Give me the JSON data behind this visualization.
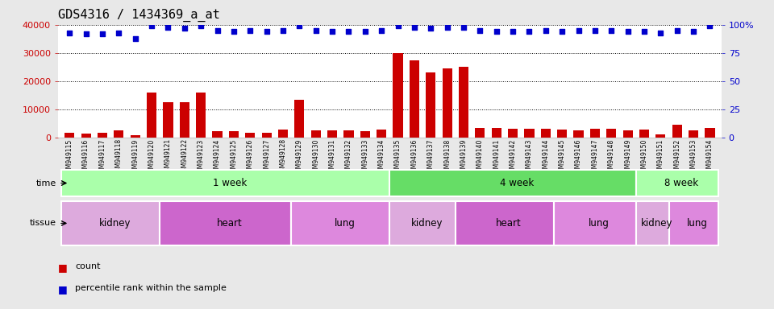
{
  "title": "GDS4316 / 1434369_a_at",
  "samples": [
    "GSM949115",
    "GSM949116",
    "GSM949117",
    "GSM949118",
    "GSM949119",
    "GSM949120",
    "GSM949121",
    "GSM949122",
    "GSM949123",
    "GSM949124",
    "GSM949125",
    "GSM949126",
    "GSM949127",
    "GSM949128",
    "GSM949129",
    "GSM949130",
    "GSM949131",
    "GSM949132",
    "GSM949133",
    "GSM949134",
    "GSM949135",
    "GSM949136",
    "GSM949137",
    "GSM949138",
    "GSM949139",
    "GSM949140",
    "GSM949141",
    "GSM949142",
    "GSM949143",
    "GSM949144",
    "GSM949145",
    "GSM949146",
    "GSM949147",
    "GSM949148",
    "GSM949149",
    "GSM949150",
    "GSM949151",
    "GSM949152",
    "GSM949153",
    "GSM949154"
  ],
  "counts": [
    1800,
    1500,
    1700,
    2500,
    900,
    16000,
    12500,
    12500,
    16000,
    2200,
    2200,
    1800,
    1700,
    2800,
    13500,
    2500,
    2500,
    2500,
    2200,
    2800,
    30000,
    27500,
    23000,
    24500,
    25000,
    3500,
    3500,
    3200,
    3000,
    3200,
    2700,
    2600,
    3000,
    3000,
    2500,
    2800,
    1200,
    4500,
    2500,
    3500
  ],
  "percentile": [
    93,
    92,
    92,
    93,
    88,
    99,
    98,
    97,
    99,
    95,
    94,
    95,
    94,
    95,
    99,
    95,
    94,
    94,
    94,
    95,
    99,
    98,
    97,
    98,
    98,
    95,
    94,
    94,
    94,
    95,
    94,
    95,
    95,
    95,
    94,
    94,
    93,
    95,
    94,
    99
  ],
  "bar_color": "#cc0000",
  "dot_color": "#0000cc",
  "ylim_left": [
    0,
    40000
  ],
  "ylim_right": [
    0,
    100
  ],
  "yticks_left": [
    0,
    10000,
    20000,
    30000,
    40000
  ],
  "yticks_right": [
    0,
    25,
    50,
    75,
    100
  ],
  "ytick_labels_left": [
    "0",
    "10000",
    "20000",
    "30000",
    "40000"
  ],
  "ytick_labels_right": [
    "0",
    "25",
    "50",
    "75",
    "100%"
  ],
  "time_groups": [
    {
      "label": "1 week",
      "start": 0,
      "end": 20,
      "color": "#aaffaa"
    },
    {
      "label": "4 week",
      "start": 20,
      "end": 35,
      "color": "#66dd66"
    },
    {
      "label": "8 week",
      "start": 35,
      "end": 40,
      "color": "#aaffaa"
    }
  ],
  "tissue_groups": [
    {
      "label": "kidney",
      "start": 0,
      "end": 6,
      "color": "#ddaadd"
    },
    {
      "label": "heart",
      "start": 6,
      "end": 14,
      "color": "#cc66cc"
    },
    {
      "label": "lung",
      "start": 14,
      "end": 20,
      "color": "#dd88dd"
    },
    {
      "label": "kidney",
      "start": 20,
      "end": 24,
      "color": "#ddaadd"
    },
    {
      "label": "heart",
      "start": 24,
      "end": 30,
      "color": "#cc66cc"
    },
    {
      "label": "lung",
      "start": 30,
      "end": 35,
      "color": "#dd88dd"
    },
    {
      "label": "kidney",
      "start": 35,
      "end": 37,
      "color": "#ddaadd"
    },
    {
      "label": "lung",
      "start": 37,
      "end": 40,
      "color": "#dd88dd"
    }
  ],
  "bg_color": "#e8e8e8",
  "xtick_bg_color": "#d0d0d0",
  "plot_bg_color": "#ffffff",
  "label_color_left": "#cc0000",
  "label_color_right": "#0000cc",
  "title_fontsize": 11,
  "tick_fontsize": 5.5,
  "annot_fontsize": 8.5,
  "legend_items": [
    "count",
    "percentile rank within the sample"
  ],
  "legend_colors": [
    "#cc0000",
    "#0000cc"
  ]
}
